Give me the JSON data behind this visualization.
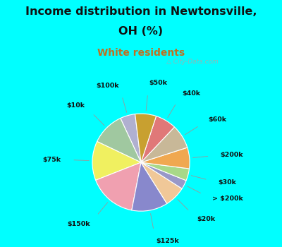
{
  "title_line1": "Income distribution in Newtonsville,",
  "title_line2": "OH (%)",
  "subtitle": "White residents",
  "title_color": "#111111",
  "subtitle_color": "#c07020",
  "bg_cyan": "#00ffff",
  "bg_pie_box": "#dff0e0",
  "labels": [
    "$100k",
    "$10k",
    "$75k",
    "$150k",
    "$125k",
    "$20k",
    "> $200k",
    "$30k",
    "$200k",
    "$60k",
    "$40k",
    "$50k"
  ],
  "values": [
    5,
    11,
    13,
    16,
    12,
    7,
    3,
    4,
    7,
    8,
    7,
    7
  ],
  "colors": [
    "#b0b0d0",
    "#a0c8a0",
    "#f0f060",
    "#f0a0b0",
    "#8888cc",
    "#f0c898",
    "#9898c8",
    "#a8d888",
    "#f0a850",
    "#c8b898",
    "#e07878",
    "#c8a030"
  ],
  "startangle": 97,
  "watermark": "City-Data.com",
  "label_color": "#111111",
  "line_color": "#999999"
}
